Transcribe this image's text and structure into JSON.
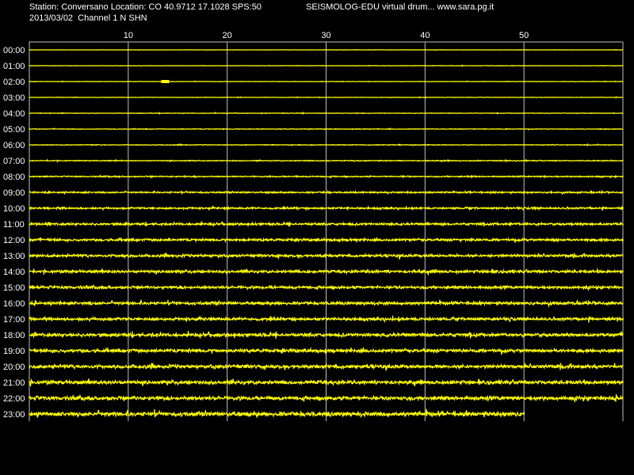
{
  "header": {
    "station_line": "Station: Conversano Location: CO 40.9712 17.1028 SPS:50",
    "product_line": "SEISMOLOG-EDU virtual drum... www.sara.pg.it",
    "date_line": "2013/03/02  Channel 1 N SHN"
  },
  "chart_data": {
    "type": "line",
    "title": "",
    "xlabel": "",
    "ylabel": "",
    "xlim": [
      0,
      60
    ],
    "x_ticks": [
      10,
      20,
      30,
      40,
      50
    ],
    "x_unit": "minutes",
    "grid": true,
    "background_color": "#000000",
    "trace_color": "#ffff00",
    "grid_color": "#c0c0c0",
    "rows": [
      {
        "label": "00:00",
        "noise_level": 0.04,
        "x_end": 60
      },
      {
        "label": "01:00",
        "noise_level": 0.05,
        "x_end": 60
      },
      {
        "label": "02:00",
        "noise_level": 0.05,
        "x_end": 60,
        "event_at": 13.5
      },
      {
        "label": "03:00",
        "noise_level": 0.05,
        "x_end": 60
      },
      {
        "label": "04:00",
        "noise_level": 0.06,
        "x_end": 60
      },
      {
        "label": "05:00",
        "noise_level": 0.07,
        "x_end": 60
      },
      {
        "label": "06:00",
        "noise_level": 0.08,
        "x_end": 60
      },
      {
        "label": "07:00",
        "noise_level": 0.1,
        "x_end": 60
      },
      {
        "label": "08:00",
        "noise_level": 0.14,
        "x_end": 60
      },
      {
        "label": "09:00",
        "noise_level": 0.18,
        "x_end": 60
      },
      {
        "label": "10:00",
        "noise_level": 0.22,
        "x_end": 60
      },
      {
        "label": "11:00",
        "noise_level": 0.26,
        "x_end": 60
      },
      {
        "label": "12:00",
        "noise_level": 0.28,
        "x_end": 60
      },
      {
        "label": "13:00",
        "noise_level": 0.3,
        "x_end": 60
      },
      {
        "label": "14:00",
        "noise_level": 0.32,
        "x_end": 60
      },
      {
        "label": "15:00",
        "noise_level": 0.32,
        "x_end": 60
      },
      {
        "label": "16:00",
        "noise_level": 0.34,
        "x_end": 60
      },
      {
        "label": "17:00",
        "noise_level": 0.34,
        "x_end": 60
      },
      {
        "label": "18:00",
        "noise_level": 0.38,
        "x_end": 60
      },
      {
        "label": "19:00",
        "noise_level": 0.38,
        "x_end": 60
      },
      {
        "label": "20:00",
        "noise_level": 0.4,
        "x_end": 60
      },
      {
        "label": "21:00",
        "noise_level": 0.42,
        "x_end": 60
      },
      {
        "label": "22:00",
        "noise_level": 0.44,
        "x_end": 60
      },
      {
        "label": "23:00",
        "noise_level": 0.5,
        "x_end": 50
      }
    ]
  }
}
